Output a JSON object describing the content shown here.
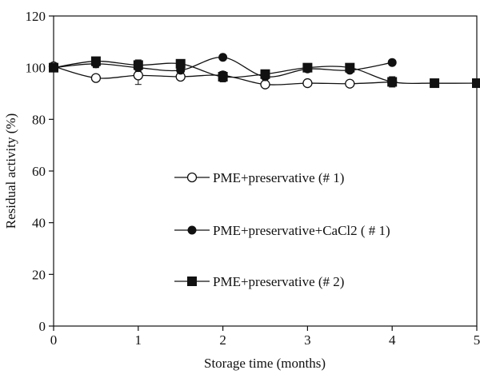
{
  "chart_data": {
    "type": "line",
    "title": "",
    "xlabel": "Storage time (months)",
    "ylabel": "Residual activity (%)",
    "xlim": [
      0,
      5
    ],
    "ylim": [
      0,
      120
    ],
    "xticks": [
      0,
      1,
      2,
      3,
      4,
      5
    ],
    "yticks": [
      0,
      20,
      40,
      60,
      80,
      100,
      120
    ],
    "grid": false,
    "legend_position": "center-right",
    "series": [
      {
        "name": "PME+preservative (# 1)",
        "marker": "open-circle",
        "x": [
          0,
          0.5,
          1,
          1.5,
          2,
          2.5,
          3,
          3.5,
          4
        ],
        "y": [
          100.5,
          96,
          97,
          96.5,
          97,
          93.5,
          94,
          93.8,
          94.5
        ],
        "err": [
          0,
          1,
          3.5,
          1,
          1.5,
          1,
          1,
          1,
          1
        ]
      },
      {
        "name": "PME+preservative+CaCl2 ( # 1)",
        "marker": "filled-circle",
        "x": [
          0,
          0.5,
          1,
          1.5,
          2,
          2.5,
          3,
          3.5,
          4
        ],
        "y": [
          100,
          101.5,
          100,
          99,
          104,
          96.5,
          99.5,
          99,
          102
        ],
        "err": [
          0,
          1.5,
          1.5,
          1,
          1,
          1,
          1,
          1,
          1
        ]
      },
      {
        "name": "PME+preservative (# 2)",
        "marker": "filled-square",
        "x": [
          0,
          0.5,
          1,
          1.5,
          2,
          2.5,
          3,
          3.5,
          4,
          4.5,
          5
        ],
        "y": [
          100,
          102.5,
          101,
          101.5,
          96.5,
          97.5,
          100,
          100,
          94.5,
          94,
          94
        ],
        "err": [
          0,
          1.5,
          2,
          1,
          2,
          1,
          1,
          1.5,
          2,
          1,
          1
        ]
      }
    ]
  }
}
